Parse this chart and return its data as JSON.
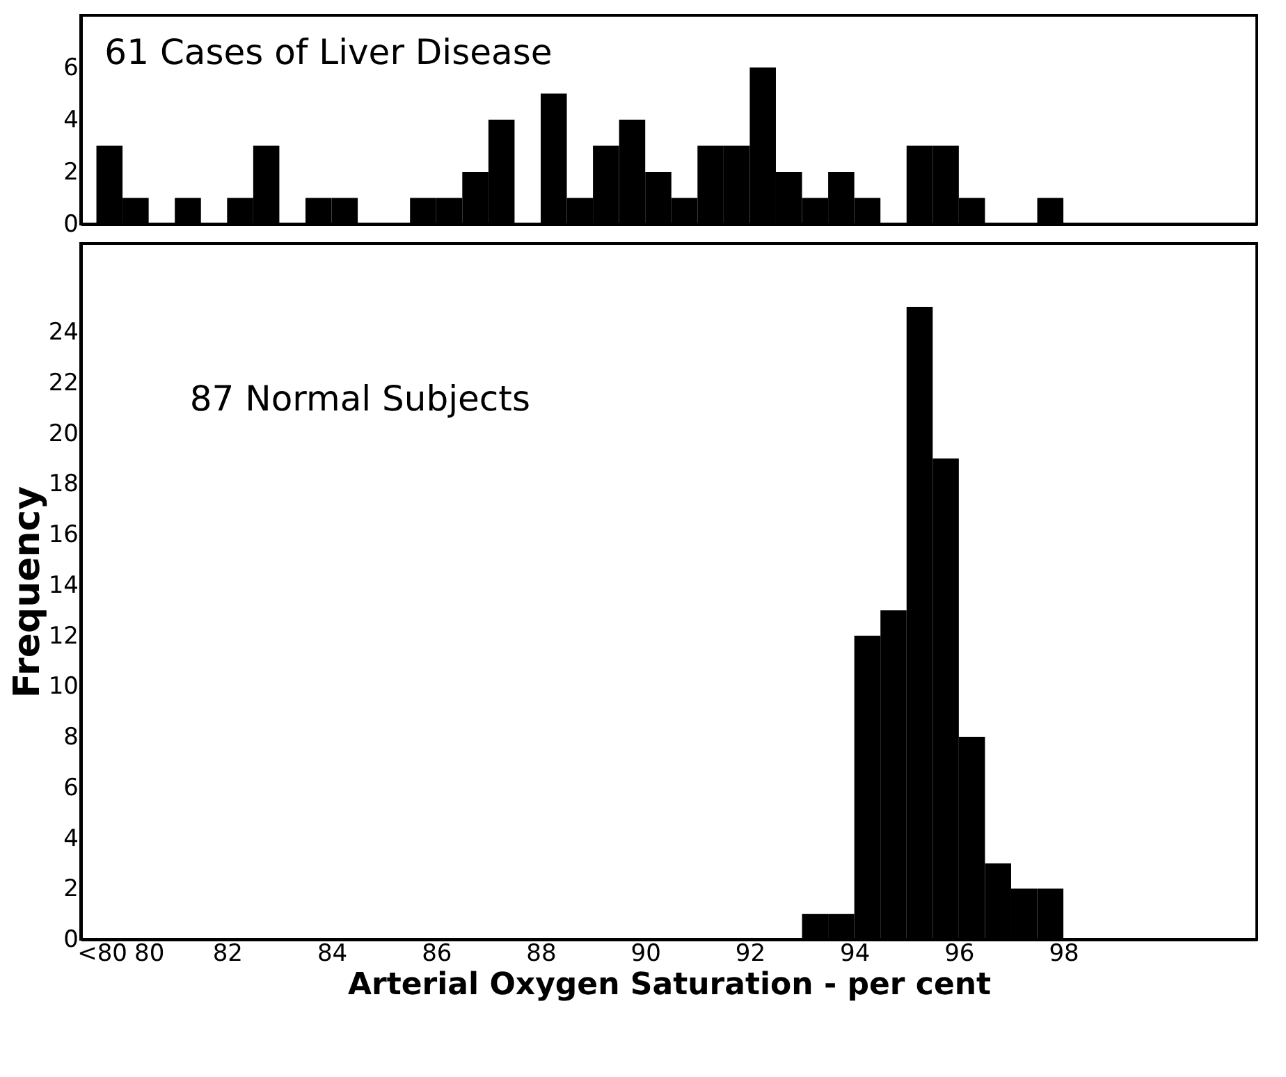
{
  "chart_data": [
    {
      "type": "histogram",
      "title": "61 Cases of Liver Disease",
      "color": "#000000",
      "tick_labels": "y",
      "bins": [
        79.5,
        80,
        80.5,
        81,
        81.5,
        82,
        82.5,
        83,
        83.5,
        84,
        84.5,
        85,
        85.5,
        86,
        86.5,
        87,
        87.5,
        88,
        88.5,
        89,
        89.5,
        90,
        90.5,
        91,
        91.5,
        92,
        92.5,
        93,
        93.5,
        94,
        94.5,
        95,
        95.5,
        96,
        96.5,
        97,
        97.5,
        98
      ],
      "values": [
        3,
        1,
        0,
        1,
        0,
        1,
        3,
        0,
        1,
        1,
        0,
        0,
        1,
        1,
        2,
        4,
        0,
        5,
        1,
        3,
        4,
        2,
        1,
        3,
        3,
        6,
        2,
        1,
        2,
        1,
        0,
        3,
        3,
        1,
        0,
        0,
        1
      ],
      "xlim": [
        79.2,
        101.7
      ],
      "ylim": [
        0,
        8
      ],
      "yticks": [
        0,
        2,
        4,
        6
      ]
    },
    {
      "type": "histogram",
      "title": "87 Normal Subjects",
      "color": "#000000",
      "xlabel": "Arterial Oxygen Saturation - per cent",
      "ylabel": "Frequency",
      "bins": [
        79.5,
        80,
        80.5,
        81,
        81.5,
        82,
        82.5,
        83,
        83.5,
        84,
        84.5,
        85,
        85.5,
        86,
        86.5,
        87,
        87.5,
        88,
        88.5,
        89,
        89.5,
        90,
        90.5,
        91,
        91.5,
        92,
        92.5,
        93,
        93.5,
        94,
        94.5,
        95,
        95.5,
        96,
        96.5,
        97,
        97.5,
        98
      ],
      "values": [
        0,
        0,
        0,
        0,
        0,
        0,
        0,
        0,
        0,
        0,
        0,
        0,
        0,
        0,
        0,
        0,
        0,
        0,
        0,
        0,
        0,
        0,
        0,
        0,
        0,
        0,
        0,
        1,
        1,
        12,
        13,
        25,
        19,
        8,
        3,
        2,
        2
      ],
      "xlim": [
        79.2,
        101.7
      ],
      "ylim": [
        0,
        27.5
      ],
      "yticks": [
        0,
        2,
        4,
        6,
        8,
        10,
        12,
        14,
        16,
        18,
        20,
        22,
        24
      ],
      "xticks": [
        {
          "value": 79.6,
          "label": "<80"
        },
        {
          "value": 80.5,
          "label": "80"
        },
        82,
        84,
        86,
        88,
        90,
        92,
        94,
        96,
        98
      ]
    }
  ]
}
